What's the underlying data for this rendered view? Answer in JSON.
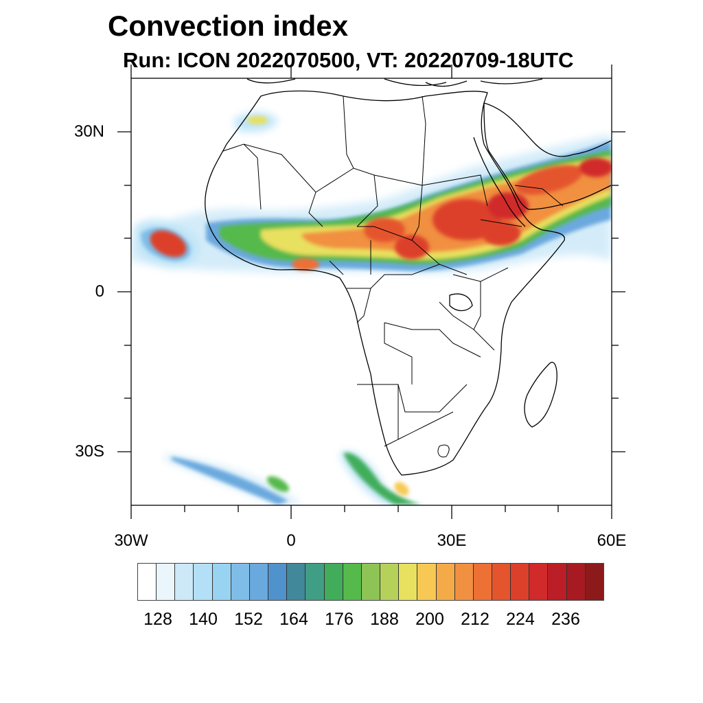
{
  "title": "Convection index",
  "subtitle": "Run: ICON 2022070500,  VT: 20220709-18UTC",
  "map": {
    "projection": "cylindrical-equidistant",
    "lon_range": [
      -30,
      60
    ],
    "lat_range": [
      -40,
      40
    ],
    "y_axis_labels": [
      "30N",
      "0",
      "30S"
    ],
    "x_axis_labels": [
      "30W",
      "0",
      "30E",
      "60E"
    ],
    "land_color": "#ffffff",
    "coastline_color": "#000000"
  },
  "colorbar": {
    "colors": [
      "#ffffff",
      "#eaf6fc",
      "#cde9f8",
      "#b3e0f6",
      "#98d4f2",
      "#7fbde8",
      "#6aa9de",
      "#4f92cc",
      "#41889a",
      "#3f9e84",
      "#41ad5a",
      "#55b94c",
      "#8dc455",
      "#b6d15a",
      "#e8e05f",
      "#f7c954",
      "#f5aa48",
      "#f19040",
      "#ed7035",
      "#e4552d",
      "#dc3f2a",
      "#d02a2a",
      "#bb1e26",
      "#a81a22",
      "#8c1a1a"
    ],
    "tick_labels": [
      "128",
      "140",
      "152",
      "164",
      "176",
      "188",
      "200",
      "212",
      "224",
      "236"
    ]
  }
}
